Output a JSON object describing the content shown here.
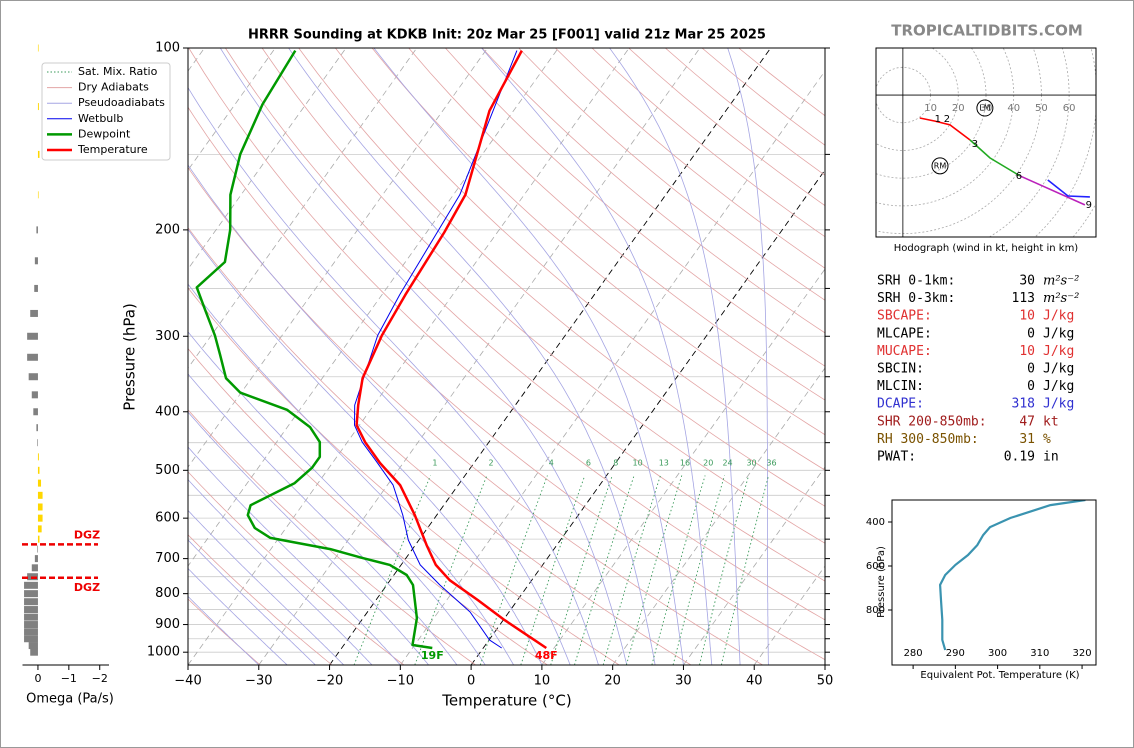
{
  "header": {
    "site": "TROPICALTIDBITS.COM"
  },
  "chart_data": [
    {
      "type": "skewt",
      "title": "HRRR Sounding at KDKB Init: 20z Mar 25 [F001] valid 21z Mar 25 2025",
      "xlabel": "Temperature (°C)",
      "ylabel": "Pressure (hPa)",
      "xlim": [
        -40,
        50
      ],
      "xticks": [
        {
          "value": -40,
          "label": "−40"
        },
        {
          "value": -30,
          "label": "−30"
        },
        {
          "value": -20,
          "label": "−20"
        },
        {
          "value": -10,
          "label": "−10"
        },
        0,
        10,
        20,
        30,
        40,
        50
      ],
      "ylim": [
        100,
        1050
      ],
      "ylog": true,
      "yticks": [
        100,
        200,
        300,
        400,
        500,
        600,
        700,
        800,
        900,
        1000
      ],
      "mixing_ratio_lines": [
        1,
        2,
        4,
        6,
        8,
        10,
        13,
        16,
        20,
        24,
        30,
        36
      ],
      "background_lines": [
        {
          "name": "Sat. Mix. Ratio",
          "color": "#3a9a5a",
          "style": "dotted"
        },
        {
          "name": "Dry Adiabats",
          "color": "#e3a5a5",
          "style": "solid"
        },
        {
          "name": "Pseudoadiabats",
          "color": "#a5a5e3",
          "style": "solid"
        }
      ],
      "series": [
        {
          "name": "Wetbulb",
          "color": "#0000ee",
          "width": 1,
          "pressure": [
            984,
            955,
            858,
            774,
            717,
            652,
            593,
            529,
            481,
            449,
            421,
            390,
            299,
            256,
            175,
            101
          ],
          "values": [
            2.6,
            0.1,
            -5.5,
            -12.5,
            -17.3,
            -21.5,
            -24.8,
            -29.2,
            -34.2,
            -37.9,
            -40.7,
            -42.7,
            -46.5,
            -47.5,
            -49.1,
            -55.6
          ]
        },
        {
          "name": "Dewpoint",
          "color": "#009900",
          "width": 2.5,
          "surface_label": "19F",
          "pressure": [
            984,
            973,
            878,
            774,
            745,
            717,
            698,
            675,
            647,
            623,
            593,
            571,
            525,
            495,
            475,
            449,
            424,
            397,
            372,
            352,
            322,
            299,
            271,
            249,
            226,
            200,
            175,
            150,
            124,
            101
          ],
          "values": [
            -7.2,
            -10.3,
            -12.4,
            -16.3,
            -18.2,
            -21.6,
            -26.2,
            -31.6,
            -41.2,
            -44.4,
            -46.7,
            -47.3,
            -43.3,
            -42.4,
            -42.4,
            -43.9,
            -46.8,
            -51.8,
            -60.1,
            -63.6,
            -66.8,
            -69.5,
            -73.5,
            -76.9,
            -75.5,
            -78,
            -81.5,
            -84.2,
            -86.1,
            -86.9
          ]
        },
        {
          "name": "Temperature",
          "color": "#ff0000",
          "width": 2.5,
          "surface_label": "48F",
          "pressure": [
            984,
            944,
            885,
            820,
            760,
            717,
            665,
            593,
            529,
            486,
            449,
            421,
            390,
            352,
            299,
            256,
            202,
            175,
            127,
            101
          ],
          "values": [
            8.9,
            5.5,
            0.2,
            -5.6,
            -11.6,
            -15.1,
            -18.4,
            -23.1,
            -28.2,
            -33.3,
            -37.5,
            -40.4,
            -42.2,
            -44.3,
            -45.9,
            -46.7,
            -47.5,
            -48.3,
            -53.4,
            -54.9
          ]
        }
      ]
    },
    {
      "type": "bar",
      "xlabel": "Omega (Pa/s)",
      "xlim": [
        0.5,
        -2.3
      ],
      "xticks": [
        0,
        {
          "value": -1,
          "label": "−1"
        },
        {
          "value": -2,
          "label": "−2"
        }
      ],
      "ylim": [
        100,
        1050
      ],
      "ylog": true,
      "pos_color": "#808080",
      "neg_color": "#ffd700",
      "pressure": [
        100,
        125,
        150,
        175,
        200,
        225,
        250,
        275,
        300,
        325,
        350,
        375,
        400,
        425,
        450,
        475,
        500,
        525,
        550,
        575,
        600,
        625,
        650,
        675,
        700,
        725,
        750,
        775,
        800,
        825,
        850,
        875,
        900,
        925,
        950,
        975,
        1000
      ],
      "values": [
        -0.02,
        -0.03,
        -0.05,
        -0.02,
        0.05,
        0.1,
        0.12,
        0.25,
        0.35,
        0.35,
        0.3,
        0.2,
        0.15,
        0.05,
        0.02,
        -0.03,
        -0.05,
        -0.1,
        -0.15,
        -0.15,
        -0.15,
        -0.12,
        -0.05,
        0.02,
        0.1,
        0.2,
        0.35,
        0.45,
        0.45,
        0.45,
        0.45,
        0.45,
        0.45,
        0.45,
        0.45,
        0.3,
        0.25
      ],
      "dgz": {
        "label": "DGZ",
        "pressures": [
          663,
          753
        ],
        "color": "#ee0000"
      }
    },
    {
      "type": "hodograph",
      "caption": "Hodograph (wind in kt, height in km)",
      "xlim": [
        -9.7,
        69.7
      ],
      "ylim": [
        -51.3,
        17
      ],
      "ring_labels": [
        10,
        20,
        30,
        40,
        50,
        60
      ],
      "segments": [
        {
          "color": "#ff0000",
          "u": [
            6.1,
            11.6,
            17,
            24.2
          ],
          "v": [
            -8.3,
            -9.4,
            -10.8,
            -16.2
          ]
        },
        {
          "color": "#22aa22",
          "u": [
            24.2,
            31.4,
            42.2
          ],
          "v": [
            -16.2,
            -22.7,
            -29.2
          ]
        },
        {
          "color": "#bb22bb",
          "u": [
            42.2,
            65.7
          ],
          "v": [
            -29.2,
            -39.7
          ]
        },
        {
          "color": "#2222ff",
          "u": [
            52.3,
            59.6,
            67.5
          ],
          "v": [
            -30.7,
            -36.5,
            -36.8
          ]
        }
      ],
      "height_labels": [
        {
          "height": 1,
          "u": 12.6,
          "v": -8.7
        },
        {
          "height": 2,
          "u": 15.9,
          "v": -8.7
        },
        {
          "height": 3,
          "u": 26,
          "v": -17.7
        },
        {
          "height": 6,
          "u": 41.9,
          "v": -29.2
        },
        {
          "height": 9,
          "u": 67.1,
          "v": -39.7
        }
      ],
      "storm_motions": [
        {
          "label": "LM",
          "u": 29.6,
          "v": -4.7
        },
        {
          "label": "RM",
          "u": 13.4,
          "v": -25.6
        }
      ]
    },
    {
      "type": "line",
      "xlabel": "Equivalent Pot. Temperature (K)",
      "ylabel": "Pressure (hPa)",
      "xlim": [
        275,
        323.3
      ],
      "xticks": [
        280,
        290,
        300,
        310,
        320
      ],
      "ylim": [
        1050,
        300
      ],
      "yticks": [
        400,
        600,
        800
      ],
      "color": "#3a93b0",
      "pressure": [
        300,
        323,
        382,
        423,
        459,
        505,
        550,
        595,
        641,
        686,
        755,
        845,
        936,
        982
      ],
      "values": [
        320.8,
        312.5,
        303,
        298.2,
        296.6,
        295.2,
        293,
        290,
        287.6,
        286.4,
        286.6,
        286.9,
        286.9,
        287.6
      ]
    }
  ],
  "parameters": [
    {
      "label": "SRH 0-1km:",
      "value": 30,
      "unit": "m²s⁻²",
      "color": "#000000"
    },
    {
      "label": "SRH 0-3km:",
      "value": 113,
      "unit": "m²s⁻²",
      "color": "#000000"
    },
    {
      "label": "SBCAPE:",
      "value": 10,
      "unit": "J/kg",
      "color": "#e03030"
    },
    {
      "label": "MLCAPE:",
      "value": 0,
      "unit": "J/kg",
      "color": "#000000"
    },
    {
      "label": "MUCAPE:",
      "value": 10,
      "unit": "J/kg",
      "color": "#e03030"
    },
    {
      "label": "SBCIN:",
      "value": 0,
      "unit": "J/kg",
      "color": "#000000"
    },
    {
      "label": "MLCIN:",
      "value": 0,
      "unit": "J/kg",
      "color": "#000000"
    },
    {
      "label": "DCAPE:",
      "value": 318,
      "unit": "J/kg",
      "color": "#3030d0"
    },
    {
      "label": "SHR 200-850mb:",
      "value": 47,
      "unit": "kt",
      "color": "#a01c1c"
    },
    {
      "label": "RH 300-850mb:",
      "value": 31,
      "unit": "%",
      "color": "#7a5200"
    },
    {
      "label": "PWAT:",
      "value": 0.19,
      "unit": "in",
      "color": "#000000"
    }
  ]
}
